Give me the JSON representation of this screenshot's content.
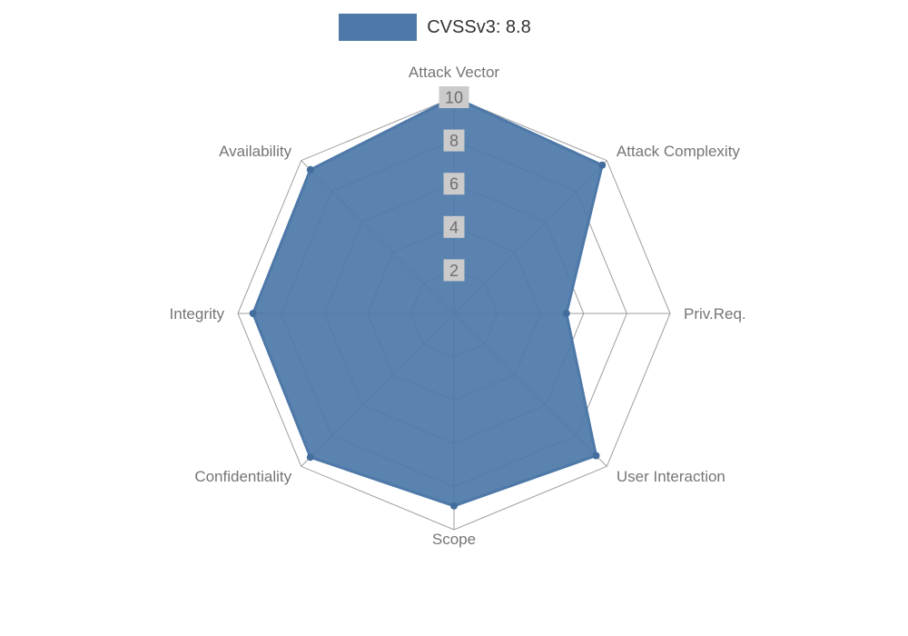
{
  "chart_data": {
    "type": "radar",
    "title": "CVSSv3: 8.8",
    "categories": [
      "Attack Vector",
      "Attack Complexity",
      "Priv.Req.",
      "User Interaction",
      "Scope",
      "Confidentiality",
      "Integrity",
      "Availability"
    ],
    "series": [
      {
        "name": "CVSSv3: 8.8",
        "values": [
          10,
          9.7,
          5.2,
          9.3,
          8.9,
          9.4,
          9.3,
          9.4
        ]
      }
    ],
    "ticks": [
      2,
      4,
      6,
      8,
      10
    ],
    "min": 0,
    "max": 10,
    "legend_position": "top",
    "fill_color": "#4d78a8",
    "fill_opacity": 0.92,
    "point_color": "#426d9c",
    "grid_color": "#9e9e9e",
    "label_color": "#757575",
    "tick_color": "#6f6f6f",
    "tick_backdrop": "#cbcbcb",
    "title_color": "#323232",
    "background_color": "#ffffff"
  }
}
